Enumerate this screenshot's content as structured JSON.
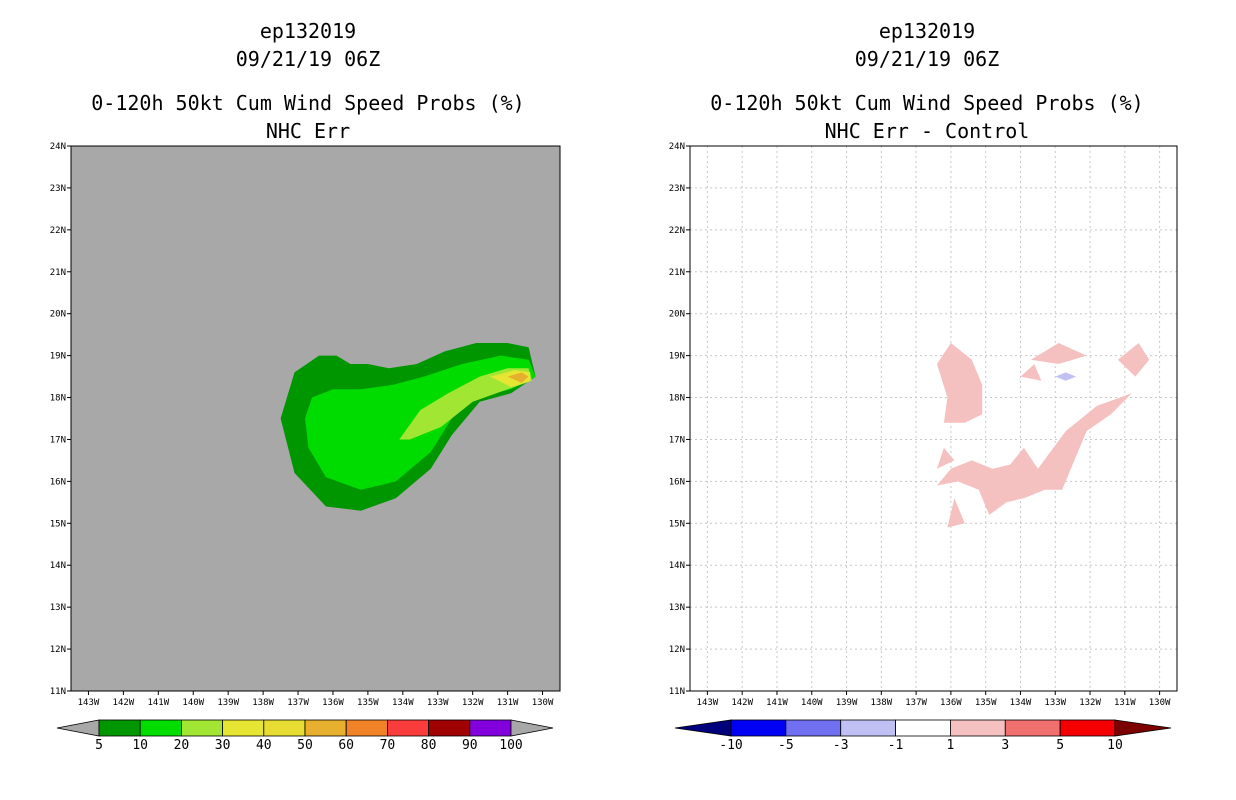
{
  "chart_data": [
    {
      "type": "filled-contour-map",
      "title_lines": [
        "ep132019",
        "09/21/19 06Z",
        "0-120h 50kt Cum Wind Speed Probs (%)",
        "NHC Err"
      ],
      "background_color": "#a8a8a8",
      "x_ticks": [
        "143W",
        "142W",
        "141W",
        "140W",
        "139W",
        "138W",
        "137W",
        "136W",
        "135W",
        "134W",
        "133W",
        "132W",
        "131W",
        "130W"
      ],
      "y_ticks": [
        "11N",
        "12N",
        "13N",
        "14N",
        "15N",
        "16N",
        "17N",
        "18N",
        "19N",
        "20N",
        "21N",
        "22N",
        "23N",
        "24N"
      ],
      "xlim": [
        -143.5,
        -129.5
      ],
      "ylim": [
        11,
        24
      ],
      "grid": false,
      "colorbar": {
        "labels": [
          "5",
          "10",
          "20",
          "30",
          "40",
          "50",
          "60",
          "70",
          "80",
          "90",
          "100"
        ],
        "colors": [
          "#009600",
          "#00dc00",
          "#a0e632",
          "#e6e632",
          "#e6dc32",
          "#e6af2d",
          "#f08228",
          "#fa3c3c",
          "#a00000",
          "#8200dc"
        ],
        "low_color": "#a8a8a8",
        "high_color": "#a8a8a8"
      },
      "contours": [
        {
          "level": 5,
          "color": "#009600",
          "points": [
            [
              -137.5,
              17.5
            ],
            [
              -137.1,
              18.6
            ],
            [
              -136.4,
              19.0
            ],
            [
              -135.9,
              19.0
            ],
            [
              -135.5,
              18.8
            ],
            [
              -135.0,
              18.8
            ],
            [
              -134.4,
              18.7
            ],
            [
              -133.6,
              18.8
            ],
            [
              -132.8,
              19.1
            ],
            [
              -131.9,
              19.3
            ],
            [
              -131.0,
              19.3
            ],
            [
              -130.4,
              19.2
            ],
            [
              -130.2,
              18.5
            ],
            [
              -130.9,
              18.1
            ],
            [
              -131.8,
              17.9
            ],
            [
              -132.6,
              17.1
            ],
            [
              -133.2,
              16.3
            ],
            [
              -134.2,
              15.6
            ],
            [
              -135.2,
              15.3
            ],
            [
              -136.2,
              15.4
            ],
            [
              -137.1,
              16.2
            ]
          ]
        },
        {
          "level": 10,
          "color": "#00dc00",
          "points": [
            [
              -136.8,
              17.5
            ],
            [
              -136.6,
              18.0
            ],
            [
              -136.0,
              18.2
            ],
            [
              -135.2,
              18.2
            ],
            [
              -134.3,
              18.3
            ],
            [
              -133.4,
              18.5
            ],
            [
              -132.3,
              18.8
            ],
            [
              -131.2,
              19.0
            ],
            [
              -130.4,
              18.9
            ],
            [
              -130.2,
              18.5
            ],
            [
              -130.9,
              18.2
            ],
            [
              -131.9,
              18.0
            ],
            [
              -132.6,
              17.5
            ],
            [
              -133.2,
              16.7
            ],
            [
              -134.2,
              16.0
            ],
            [
              -135.2,
              15.8
            ],
            [
              -136.2,
              16.1
            ],
            [
              -136.7,
              16.8
            ]
          ]
        },
        {
          "level": 20,
          "color": "#a0e632",
          "points": [
            [
              -134.1,
              17.0
            ],
            [
              -133.5,
              17.7
            ],
            [
              -132.7,
              18.1
            ],
            [
              -131.8,
              18.5
            ],
            [
              -131.0,
              18.7
            ],
            [
              -130.4,
              18.7
            ],
            [
              -130.3,
              18.4
            ],
            [
              -131.0,
              18.2
            ],
            [
              -132.0,
              17.9
            ],
            [
              -132.9,
              17.3
            ],
            [
              -133.8,
              17.0
            ]
          ]
        },
        {
          "level": 30,
          "color": "#e6e632",
          "points": [
            [
              -131.5,
              18.5
            ],
            [
              -130.8,
              18.65
            ],
            [
              -130.35,
              18.6
            ],
            [
              -130.35,
              18.4
            ],
            [
              -130.9,
              18.25
            ]
          ]
        },
        {
          "level": 50,
          "color": "#e6af2d",
          "points": [
            [
              -131.0,
              18.5
            ],
            [
              -130.6,
              18.6
            ],
            [
              -130.4,
              18.5
            ],
            [
              -130.6,
              18.35
            ]
          ]
        }
      ]
    },
    {
      "type": "filled-contour-map",
      "title_lines": [
        "ep132019",
        "09/21/19 06Z",
        "0-120h 50kt Cum Wind Speed Probs (%)",
        "NHC Err - Control"
      ],
      "background_color": "#ffffff",
      "x_ticks": [
        "143W",
        "142W",
        "141W",
        "140W",
        "139W",
        "138W",
        "137W",
        "136W",
        "135W",
        "134W",
        "133W",
        "132W",
        "131W",
        "130W"
      ],
      "y_ticks": [
        "11N",
        "12N",
        "13N",
        "14N",
        "15N",
        "16N",
        "17N",
        "18N",
        "19N",
        "20N",
        "21N",
        "22N",
        "23N",
        "24N"
      ],
      "xlim": [
        -143.5,
        -129.5
      ],
      "ylim": [
        11,
        24
      ],
      "grid": true,
      "colorbar": {
        "labels": [
          "-10",
          "-5",
          "-3",
          "-1",
          "1",
          "3",
          "5",
          "10"
        ],
        "colors": [
          "#0000f5",
          "#7070f0",
          "#c0c0f5",
          "#ffffff",
          "#f5c0c0",
          "#f07070",
          "#f50000"
        ],
        "low_color": "#00007d",
        "high_color": "#7d0000"
      },
      "contours": [
        {
          "level": 1,
          "color": "#f5c0c0",
          "points": [
            [
              -136.4,
              18.8
            ],
            [
              -136.0,
              19.3
            ],
            [
              -135.4,
              18.9
            ],
            [
              -135.1,
              18.3
            ],
            [
              -135.1,
              17.6
            ],
            [
              -135.6,
              17.4
            ],
            [
              -136.2,
              17.4
            ],
            [
              -136.1,
              18.0
            ]
          ]
        },
        {
          "level": 1,
          "color": "#f5c0c0",
          "points": [
            [
              -136.4,
              15.9
            ],
            [
              -136.0,
              16.3
            ],
            [
              -135.4,
              16.5
            ],
            [
              -134.8,
              16.3
            ],
            [
              -134.3,
              16.4
            ],
            [
              -133.9,
              16.8
            ],
            [
              -133.5,
              16.3
            ],
            [
              -132.7,
              17.2
            ],
            [
              -131.8,
              17.8
            ],
            [
              -130.8,
              18.1
            ],
            [
              -131.4,
              17.6
            ],
            [
              -132.1,
              17.2
            ],
            [
              -132.5,
              16.4
            ],
            [
              -132.8,
              15.8
            ],
            [
              -133.3,
              15.8
            ],
            [
              -133.9,
              15.6
            ],
            [
              -134.4,
              15.5
            ],
            [
              -134.9,
              15.2
            ],
            [
              -135.2,
              15.8
            ],
            [
              -135.8,
              16.0
            ]
          ]
        },
        {
          "level": 1,
          "color": "#f5c0c0",
          "points": [
            [
              -136.4,
              16.3
            ],
            [
              -136.2,
              16.8
            ],
            [
              -135.9,
              16.5
            ]
          ]
        },
        {
          "level": 1,
          "color": "#f5c0c0",
          "points": [
            [
              -136.1,
              14.9
            ],
            [
              -135.9,
              15.6
            ],
            [
              -135.6,
              15.0
            ]
          ]
        },
        {
          "level": 1,
          "color": "#f5c0c0",
          "points": [
            [
              -133.7,
              18.9
            ],
            [
              -132.9,
              19.3
            ],
            [
              -132.1,
              19.0
            ],
            [
              -132.9,
              18.8
            ]
          ]
        },
        {
          "level": 1,
          "color": "#f5c0c0",
          "points": [
            [
              -134.0,
              18.5
            ],
            [
              -133.6,
              18.8
            ],
            [
              -133.4,
              18.4
            ]
          ]
        },
        {
          "level": 1,
          "color": "#f5c0c0",
          "points": [
            [
              -131.2,
              18.9
            ],
            [
              -130.6,
              19.3
            ],
            [
              -130.3,
              18.9
            ],
            [
              -130.7,
              18.5
            ]
          ]
        },
        {
          "level": -1,
          "color": "#c0c0f5",
          "points": [
            [
              -133.0,
              18.5
            ],
            [
              -132.7,
              18.6
            ],
            [
              -132.4,
              18.5
            ],
            [
              -132.7,
              18.4
            ]
          ]
        }
      ]
    }
  ]
}
